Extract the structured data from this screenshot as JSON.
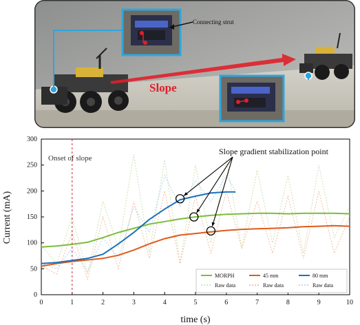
{
  "photo": {
    "callout_label": "Connecting strut",
    "slope_label": "Slope",
    "colors": {
      "callout_border": "#2ea6dc",
      "marker": "#e0202a",
      "slope_arrow": "#e0202a"
    }
  },
  "chart_data": {
    "type": "line",
    "xlabel": "time (s)",
    "ylabel": "Current (mA)",
    "xlim": [
      0,
      10
    ],
    "ylim": [
      0,
      300
    ],
    "x_ticks": [
      "0",
      "1",
      "2",
      "3",
      "4",
      "5",
      "6",
      "7",
      "8",
      "9",
      "10"
    ],
    "y_ticks": [
      "0",
      "50",
      "100",
      "150",
      "200",
      "250",
      "300"
    ],
    "grid": false,
    "legend_position": "bottom-right",
    "annotations": {
      "onset": {
        "label": "Onset of slope",
        "x": 1
      },
      "stabilization": {
        "label": "Slope gradient stabilization point",
        "points": [
          {
            "x": 4.5,
            "y": 185
          },
          {
            "x": 4.95,
            "y": 150
          },
          {
            "x": 5.5,
            "y": 123
          }
        ]
      }
    },
    "series": [
      {
        "name": "MORPH",
        "color": "#7cbd3a",
        "x": [
          0,
          0.5,
          1,
          1.5,
          2,
          2.5,
          3,
          3.5,
          4,
          4.5,
          5,
          5.5,
          6,
          6.5,
          7,
          7.5,
          8,
          8.5,
          9,
          9.5,
          10
        ],
        "y": [
          92,
          94,
          97,
          101,
          110,
          120,
          128,
          136,
          141,
          146,
          150,
          153,
          155,
          156,
          157,
          157,
          156,
          157,
          157,
          157,
          156
        ]
      },
      {
        "name": "45 mm",
        "color": "#e05a1a",
        "x": [
          0,
          0.5,
          1,
          1.5,
          2,
          2.5,
          3,
          3.5,
          4,
          4.5,
          5,
          5.5,
          6,
          6.5,
          7,
          7.5,
          8,
          8.5,
          9,
          9.5,
          10
        ],
        "y": [
          55,
          60,
          64,
          67,
          70,
          76,
          86,
          98,
          108,
          115,
          118,
          121,
          124,
          126,
          127,
          128,
          129,
          131,
          132,
          133,
          132
        ]
      },
      {
        "name": "80 mm",
        "color": "#1a6fc0",
        "x": [
          0,
          0.5,
          1,
          1.5,
          2,
          2.5,
          3,
          3.5,
          4,
          4.5,
          5,
          5.5,
          6,
          6.3
        ],
        "y": [
          60,
          62,
          66,
          70,
          78,
          98,
          120,
          145,
          165,
          183,
          190,
          196,
          198,
          198
        ]
      },
      {
        "name": "Raw data",
        "color": "#b5d68a",
        "dash": "2,2",
        "x": [
          0,
          0.5,
          1,
          1.5,
          2,
          2.5,
          3,
          3.5,
          4,
          4.5,
          5,
          5.5,
          6,
          6.5,
          7,
          7.5,
          8,
          8.5,
          9,
          9.5,
          10
        ],
        "y": [
          95,
          60,
          150,
          40,
          180,
          90,
          270,
          80,
          260,
          60,
          250,
          100,
          260,
          90,
          240,
          100,
          230,
          80,
          250,
          110,
          170
        ]
      },
      {
        "name": "Raw data",
        "color": "#f0a070",
        "dash": "2,2",
        "x": [
          0,
          0.5,
          1,
          1.5,
          2,
          2.5,
          3,
          3.5,
          4,
          4.5,
          5,
          5.5,
          6,
          6.5,
          7,
          7.5,
          8,
          8.5,
          9,
          9.5,
          10
        ],
        "y": [
          55,
          40,
          120,
          30,
          150,
          50,
          180,
          70,
          200,
          60,
          190,
          80,
          200,
          90,
          180,
          80,
          190,
          70,
          200,
          80,
          150
        ]
      },
      {
        "name": "Raw data",
        "color": "#8fc4ea",
        "dash": "2,2",
        "x": [
          0,
          0.5,
          1,
          1.5,
          2,
          2.5,
          3,
          3.5,
          4,
          4.5,
          5,
          5.5,
          6,
          6.3
        ],
        "y": [
          60,
          50,
          90,
          45,
          110,
          70,
          170,
          120,
          230,
          170,
          220,
          180,
          230,
          200
        ]
      }
    ]
  }
}
